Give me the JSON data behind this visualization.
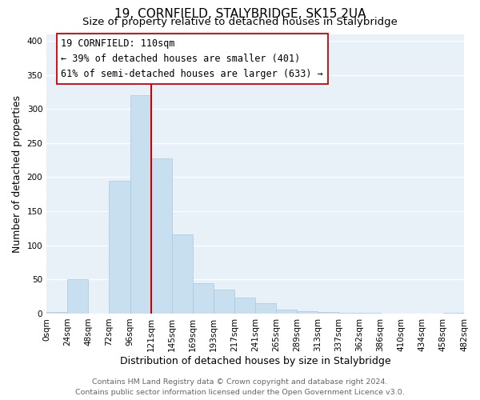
{
  "title": "19, CORNFIELD, STALYBRIDGE, SK15 2UA",
  "subtitle": "Size of property relative to detached houses in Stalybridge",
  "xlabel": "Distribution of detached houses by size in Stalybridge",
  "ylabel": "Number of detached properties",
  "bin_labels": [
    "0sqm",
    "24sqm",
    "48sqm",
    "72sqm",
    "96sqm",
    "121sqm",
    "145sqm",
    "169sqm",
    "193sqm",
    "217sqm",
    "241sqm",
    "265sqm",
    "289sqm",
    "313sqm",
    "337sqm",
    "362sqm",
    "386sqm",
    "410sqm",
    "434sqm",
    "458sqm",
    "482sqm"
  ],
  "bar_heights": [
    2,
    50,
    0,
    195,
    320,
    228,
    116,
    45,
    35,
    24,
    15,
    6,
    3,
    2,
    1,
    1,
    0,
    0,
    0,
    1
  ],
  "bar_color": "#c8dff0",
  "bar_edge_color": "#aac8e0",
  "annotation_line1": "19 CORNFIELD: 110sqm",
  "annotation_line2": "← 39% of detached houses are smaller (401)",
  "annotation_line3": "61% of semi-detached houses are larger (633) →",
  "vline_color": "#cc0000",
  "annotation_box_color": "#ffffff",
  "annotation_box_edge": "#cc0000",
  "ylim": [
    0,
    410
  ],
  "footer_line1": "Contains HM Land Registry data © Crown copyright and database right 2024.",
  "footer_line2": "Contains public sector information licensed under the Open Government Licence v3.0.",
  "background_color": "#ffffff",
  "plot_bg_color": "#e8f0f8",
  "grid_color": "#ffffff",
  "title_fontsize": 11,
  "subtitle_fontsize": 9.5,
  "axis_label_fontsize": 9,
  "tick_fontsize": 7.5,
  "footer_fontsize": 6.8,
  "annotation_fontsize": 8.5,
  "yticks": [
    0,
    50,
    100,
    150,
    200,
    250,
    300,
    350,
    400
  ]
}
